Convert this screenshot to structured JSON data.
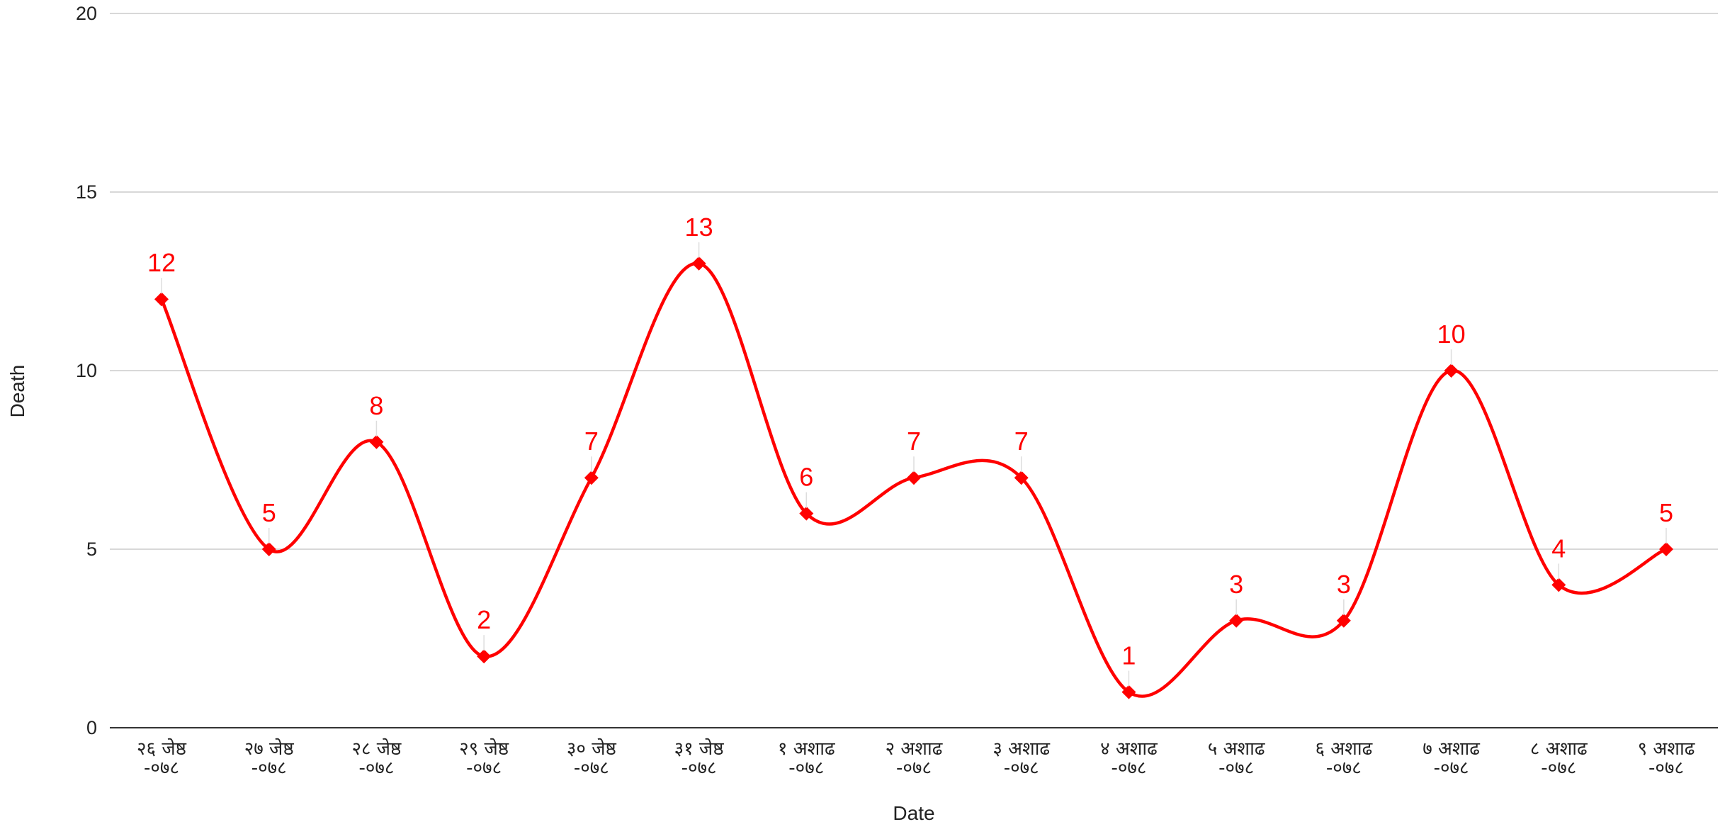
{
  "chart_data": {
    "type": "line",
    "title": "",
    "xlabel": "Date",
    "ylabel": "Death",
    "ylim": [
      0,
      20
    ],
    "yticks": [
      0,
      5,
      10,
      15,
      20
    ],
    "grid": true,
    "smooth": true,
    "categories": [
      [
        "२६ जेष्ठ",
        "-०७८"
      ],
      [
        "२७ जेष्ठ",
        "-०७८"
      ],
      [
        "२८ जेष्ठ",
        "-०७८"
      ],
      [
        "२९ जेष्ठ",
        "-०७८"
      ],
      [
        "३० जेष्ठ",
        "-०७८"
      ],
      [
        "३१ जेष्ठ",
        "-०७८"
      ],
      [
        "१ अशाढ",
        "-०७८"
      ],
      [
        "२ अशाढ",
        "-०७८"
      ],
      [
        "३ अशाढ",
        "-०७८"
      ],
      [
        "४ अशाढ",
        "-०७८"
      ],
      [
        "५ अशाढ",
        "-०७८"
      ],
      [
        "६ अशाढ",
        "-०७८"
      ],
      [
        "७ अशाढ",
        "-०७८"
      ],
      [
        "८ अशाढ",
        "-०७८"
      ],
      [
        "९ अशाढ",
        "-०७८"
      ]
    ],
    "series": [
      {
        "color": "#ff0000",
        "marker": "diamond",
        "data_labels": true,
        "values": [
          12,
          5,
          8,
          2,
          7,
          13,
          6,
          7,
          7,
          1,
          3,
          3,
          10,
          4,
          5
        ]
      }
    ]
  }
}
